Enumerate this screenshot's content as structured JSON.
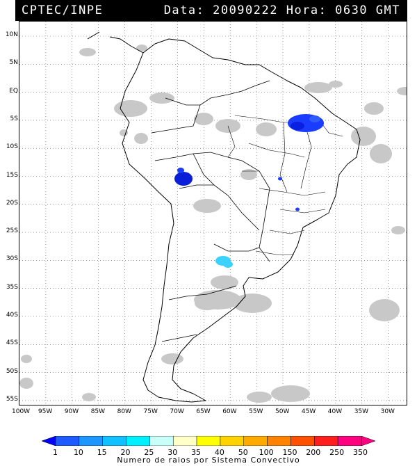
{
  "header": {
    "source": "CPTEC/INPE",
    "timestamp": "Data: 20090222 Hora: 0630 GMT"
  },
  "map": {
    "lat_labels": [
      "10N",
      "5N",
      "EQ",
      "5S",
      "10S",
      "15S",
      "20S",
      "25S",
      "30S",
      "35S",
      "40S",
      "45S",
      "50S",
      "55S"
    ],
    "lon_labels": [
      "100W",
      "95W",
      "90W",
      "85W",
      "80W",
      "75W",
      "70W",
      "65W",
      "60W",
      "55W",
      "50W",
      "45W",
      "40W",
      "35W",
      "30W"
    ],
    "background_color": "#ffffff",
    "coastline_color": "#000000",
    "gridline_color": "#555555",
    "cloud_color": "#c8c8c8",
    "lightning_clusters": [
      {
        "region": "northeast Brazil",
        "color": "#1a3cff"
      },
      {
        "region": "Bolivia",
        "color": "#0a1fd8"
      },
      {
        "region": "northeast Argentina",
        "color": "#3cd2ff"
      }
    ]
  },
  "legend": {
    "ticks": [
      "1",
      "10",
      "15",
      "20",
      "25",
      "30",
      "35",
      "40",
      "50",
      "100",
      "150",
      "200",
      "250",
      "350"
    ],
    "colors": [
      "#0000ff",
      "#1e5aff",
      "#1e96ff",
      "#10c0ff",
      "#00f0ff",
      "#c8fff8",
      "#ffffc8",
      "#ffff00",
      "#ffd200",
      "#ffaa00",
      "#ff8200",
      "#ff5000",
      "#ff1e1e",
      "#ff0080"
    ],
    "caption": "Numero de raios por Sistema Convectivo"
  }
}
